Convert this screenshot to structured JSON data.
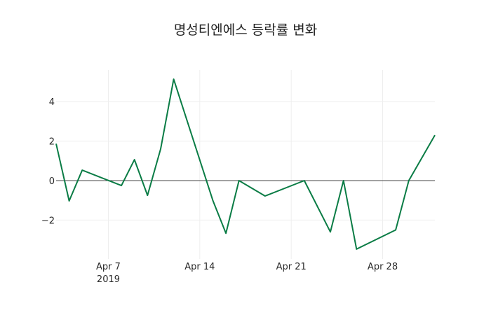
{
  "chart_data": {
    "type": "line",
    "title": "명성티엔에스 등락률 변화",
    "xlabel": "",
    "ylabel": "",
    "grid": true,
    "legend": "none",
    "line_color": "#0a7c45",
    "ylim": [
      -3.9,
      5.6
    ],
    "xlim": [
      "2019-04-03",
      "2019-05-02"
    ],
    "x_ticks": [
      {
        "date": "2019-04-07",
        "label": "Apr 7",
        "sublabel": "2019"
      },
      {
        "date": "2019-04-14",
        "label": "Apr 14",
        "sublabel": ""
      },
      {
        "date": "2019-04-21",
        "label": "Apr 21",
        "sublabel": ""
      },
      {
        "date": "2019-04-28",
        "label": "Apr 28",
        "sublabel": ""
      }
    ],
    "y_ticks": [
      -2,
      0,
      2,
      4
    ],
    "y_tick_labels": [
      "−2",
      "0",
      "2",
      "4"
    ],
    "x": [
      "2019-04-03",
      "2019-04-04",
      "2019-04-05",
      "2019-04-08",
      "2019-04-09",
      "2019-04-10",
      "2019-04-11",
      "2019-04-12",
      "2019-04-15",
      "2019-04-16",
      "2019-04-17",
      "2019-04-19",
      "2019-04-22",
      "2019-04-24",
      "2019-04-25",
      "2019-04-26",
      "2019-04-29",
      "2019-04-30",
      "2019-05-02"
    ],
    "series": [
      {
        "name": "등락률",
        "values": [
          1.87,
          -1.03,
          0.53,
          -0.25,
          1.06,
          -0.75,
          1.6,
          5.14,
          -1.0,
          -2.67,
          0.0,
          -0.78,
          0.0,
          -2.6,
          0.0,
          -3.47,
          -2.5,
          0.0,
          2.3
        ]
      }
    ]
  }
}
